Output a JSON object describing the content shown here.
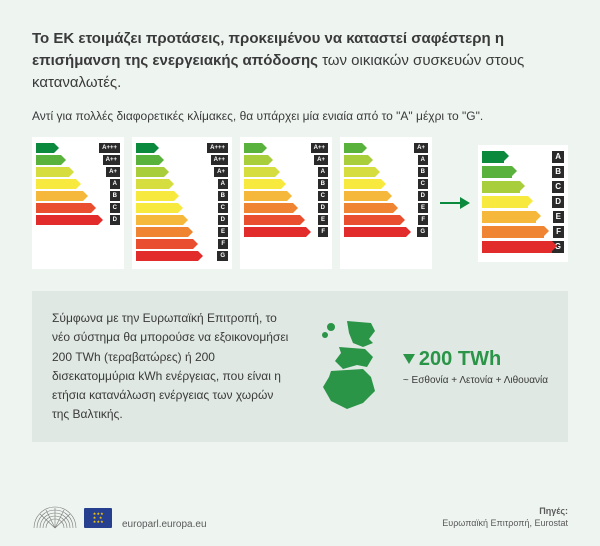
{
  "headline": {
    "bold": "Το ΕΚ ετοιμάζει προτάσεις, προκειμένου να καταστεί σαφέστερη η επισήμανση της ενεργειακής απόδοσης",
    "rest": " των οικιακών συσκευών στους καταναλωτές."
  },
  "subline": "Αντί για πολλές διαφορετικές κλίμακες, θα υπάρχει μία ενιαία από το \"Α\" μέχρι το \"G\".",
  "colors": {
    "gradient": [
      "#0b8a3d",
      "#59b23b",
      "#a8cf3b",
      "#d6dd3e",
      "#f7e93e",
      "#f5b83a",
      "#ef8432",
      "#e94f2f",
      "#e22b2b"
    ],
    "arrow": "#0b8a3d",
    "map": "#2a9447",
    "euflag": "#263f8f"
  },
  "old_labels": [
    {
      "classes": [
        "A+++",
        "A++",
        "A+",
        "A",
        "B",
        "C",
        "D"
      ],
      "colorStart": 0
    },
    {
      "classes": [
        "A+++",
        "A++",
        "A+",
        "A",
        "B",
        "C",
        "D",
        "E",
        "F",
        "G"
      ],
      "colorStart": 0,
      "wide": true
    },
    {
      "classes": [
        "A++",
        "A+",
        "A",
        "B",
        "C",
        "D",
        "E",
        "F"
      ],
      "colorStart": 1
    },
    {
      "classes": [
        "A+",
        "A",
        "B",
        "C",
        "D",
        "E",
        "F",
        "G"
      ],
      "colorStart": 1
    }
  ],
  "new_label": {
    "classes": [
      "A",
      "B",
      "C",
      "D",
      "E",
      "F",
      "G"
    ],
    "colorIdx": [
      0,
      1,
      2,
      4,
      5,
      6,
      8
    ]
  },
  "bottom": {
    "text": "Σύμφωνα με την Ευρωπαϊκή Επιτροπή, το νέο σύστημα θα μπορούσε να εξοικονομήσει 200 TWh (τεραβατώρες) ή 200 δισεκατομμύρια kWh ενέργειας, που είναι η ετήσια κατανάλωση ενέργειας των χωρών της Βαλτικής.",
    "value": "200 TWh",
    "caption": "~ Εσθονία + Λετονία + Λιθουανία"
  },
  "footer": {
    "url": "europarl.europa.eu",
    "sources_label": "Πηγές:",
    "sources_value": "Ευρωπαϊκή Επιτροπή, Eurostat"
  }
}
